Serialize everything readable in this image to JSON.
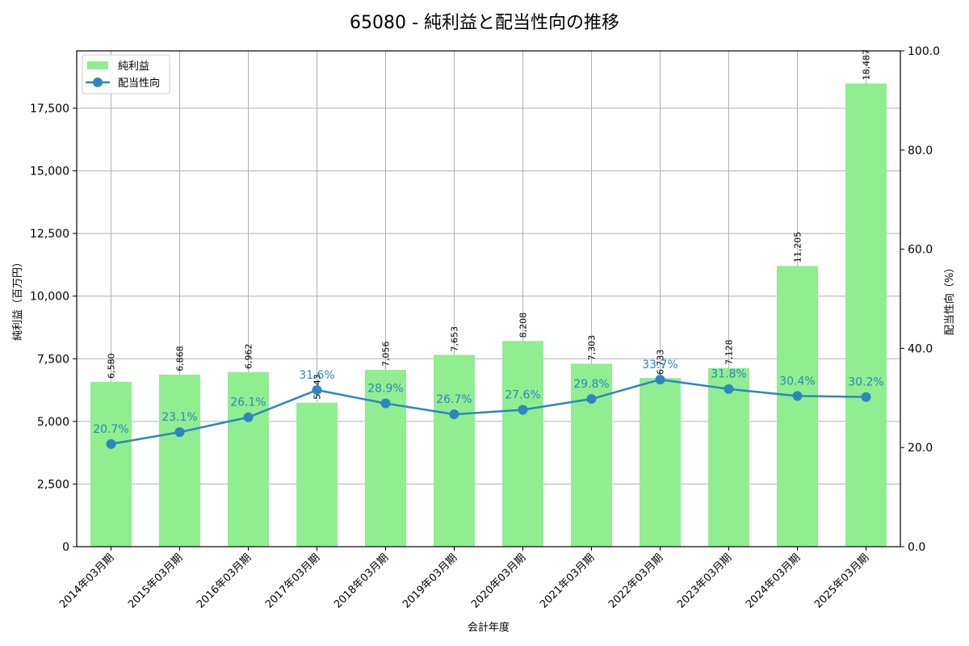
{
  "chart_data": {
    "type": "bar+line",
    "title": "65080 - 純利益と配当性向の推移",
    "xlabel": "会計年度",
    "ylabel": "純利益（百万円）",
    "ylabel_right": "配当性向（%）",
    "categories": [
      "2014年03月期",
      "2015年03月期",
      "2016年03月期",
      "2017年03月期",
      "2018年03月期",
      "2019年03月期",
      "2020年03月期",
      "2021年03月期",
      "2022年03月期",
      "2023年03月期",
      "2024年03月期",
      "2025年03月期"
    ],
    "series": [
      {
        "name": "純利益",
        "type": "bar",
        "axis": "left",
        "color": "#90ee90",
        "values": [
          6580,
          6868,
          6962,
          5743,
          7056,
          7653,
          8208,
          7303,
          6733,
          7128,
          11205,
          18487
        ],
        "labels": [
          "6,580",
          "6,868",
          "6,962",
          "5,743",
          "7,056",
          "7,653",
          "8,208",
          "7,303",
          "6,733",
          "7,128",
          "11,205",
          "18,487"
        ]
      },
      {
        "name": "配当性向",
        "type": "line",
        "axis": "right",
        "color": "#2e86c1",
        "values": [
          20.7,
          23.1,
          26.1,
          31.6,
          28.9,
          26.7,
          27.6,
          29.8,
          33.7,
          31.8,
          30.4,
          30.2
        ],
        "labels": [
          "20.7%",
          "23.1%",
          "26.1%",
          "31.6%",
          "28.9%",
          "26.7%",
          "27.6%",
          "29.8%",
          "33.7%",
          "31.8%",
          "30.4%",
          "30.2%"
        ]
      }
    ],
    "ylim": [
      0,
      19788
    ],
    "ylim_right": [
      0,
      100
    ],
    "yticks": [
      0,
      2500,
      5000,
      7500,
      10000,
      12500,
      15000,
      17500
    ],
    "yticklabels": [
      "0",
      "2,500",
      "5,000",
      "7,500",
      "10,000",
      "12,500",
      "15,000",
      "17,500"
    ],
    "yticks_right": [
      0,
      20,
      40,
      60,
      80,
      100
    ],
    "yticklabels_right": [
      "0.0",
      "20.0",
      "40.0",
      "60.0",
      "80.0",
      "100.0"
    ],
    "grid": true,
    "legend_position": "upper left"
  }
}
